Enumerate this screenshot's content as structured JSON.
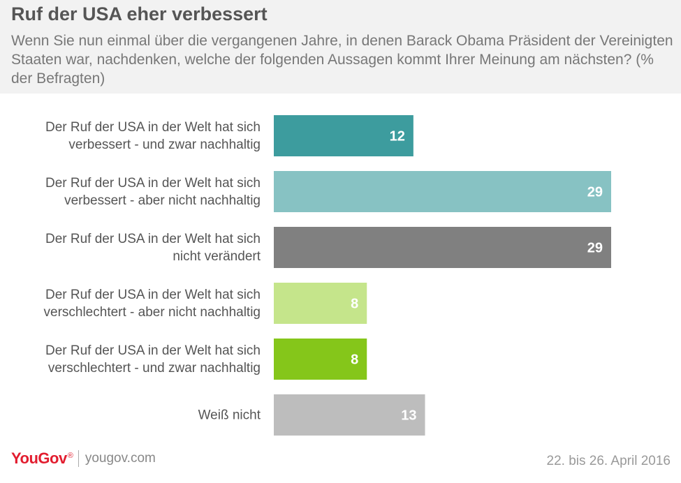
{
  "header": {
    "title": "Ruf der USA eher verbessert",
    "subtitle": "Wenn Sie nun einmal über die vergangenen Jahre, in denen Barack Obama Präsident der Vereinigten Staaten war, nachdenken, welche der folgenden Aussagen kommt Ihrer Meinung am nächsten? (% der Befragten)"
  },
  "chart_data": {
    "type": "bar",
    "orientation": "horizontal",
    "categories": [
      [
        "Der Ruf der USA in der Welt hat sich",
        "verbessert - und zwar nachhaltig"
      ],
      [
        "Der Ruf der USA in der Welt hat sich",
        "verbessert - aber nicht nachhaltig"
      ],
      [
        "Der Ruf der USA in der Welt hat sich",
        "nicht verändert"
      ],
      [
        "Der Ruf der USA in der Welt hat sich",
        "verschlechtert - aber nicht nachhaltig"
      ],
      [
        "Der Ruf der USA in der Welt hat sich",
        "verschlechtert - und zwar nachhaltig"
      ],
      [
        "Weiß nicht"
      ]
    ],
    "values": [
      12,
      29,
      29,
      8,
      8,
      13
    ],
    "value_labels": [
      "12",
      "29",
      "29",
      "8",
      "8",
      "13"
    ],
    "colors": [
      "#3d9c9e",
      "#87c2c3",
      "#808080",
      "#c5e58b",
      "#85c61a",
      "#bdbdbd"
    ],
    "xlim": [
      0,
      29
    ],
    "grid": false,
    "legend": "none",
    "xlabel": "",
    "ylabel": ""
  },
  "footer": {
    "logo_you": "You",
    "logo_gov": "Gov",
    "logo_mark": "®",
    "site": "yougov.com",
    "date": "22. bis 26. April 2016"
  }
}
